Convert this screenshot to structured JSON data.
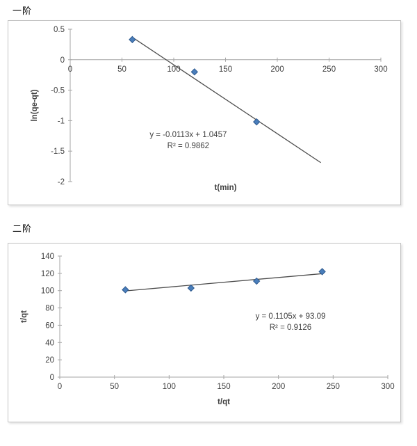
{
  "colors": {
    "marker_fill": "#4a7ebb",
    "marker_edge": "#2e5a8f",
    "trend_line": "#4d4d4d",
    "axis_line": "#a6a6a6",
    "tick_text": "#404040",
    "label_text": "#404040",
    "title_text": "#000000",
    "chart_border": "#c3c3c3",
    "background": "#ffffff"
  },
  "sections": [
    {
      "title": "一阶",
      "chart_data": {
        "type": "scatter",
        "x": [
          60,
          120,
          180
        ],
        "y": [
          0.33,
          -0.2,
          -1.02
        ],
        "title": "",
        "xlabel": "t(min)",
        "ylabel": "ln(qe-qt)",
        "xlim": [
          0,
          300
        ],
        "ylim": [
          -2,
          0.5
        ],
        "xticks": [
          "0",
          "50",
          "100",
          "150",
          "200",
          "250",
          "300"
        ],
        "yticks": [
          "0.5",
          "0",
          "-0.5",
          "-1",
          "-1.5",
          "-2"
        ],
        "grid": false,
        "legend": "none",
        "trendline": {
          "slope": -0.0113,
          "intercept": 1.0457,
          "x_start": 60,
          "x_end": 242
        },
        "annotation": {
          "lines": [
            "y = -0.0113x + 1.0457",
            "R² = 0.9862"
          ],
          "x": 114,
          "y": -1.27
        }
      }
    },
    {
      "title": "二阶",
      "chart_data": {
        "type": "scatter",
        "x": [
          60,
          120,
          180,
          240
        ],
        "y": [
          101,
          103,
          111,
          122
        ],
        "title": "",
        "xlabel": "t/qt",
        "ylabel": "t/qt",
        "xlim": [
          0,
          300
        ],
        "ylim": [
          0,
          140
        ],
        "xticks": [
          "0",
          "50",
          "100",
          "150",
          "200",
          "250",
          "300"
        ],
        "yticks": [
          "0",
          "20",
          "40",
          "60",
          "80",
          "100",
          "120",
          "140"
        ],
        "grid": false,
        "legend": "none",
        "trendline": {
          "slope": 0.1105,
          "intercept": 93.09,
          "x_start": 58,
          "x_end": 241
        },
        "annotation": {
          "lines": [
            "y = 0.1105x + 93.09",
            "R² = 0.9126"
          ],
          "x": 211,
          "y": 67.5
        }
      }
    }
  ]
}
